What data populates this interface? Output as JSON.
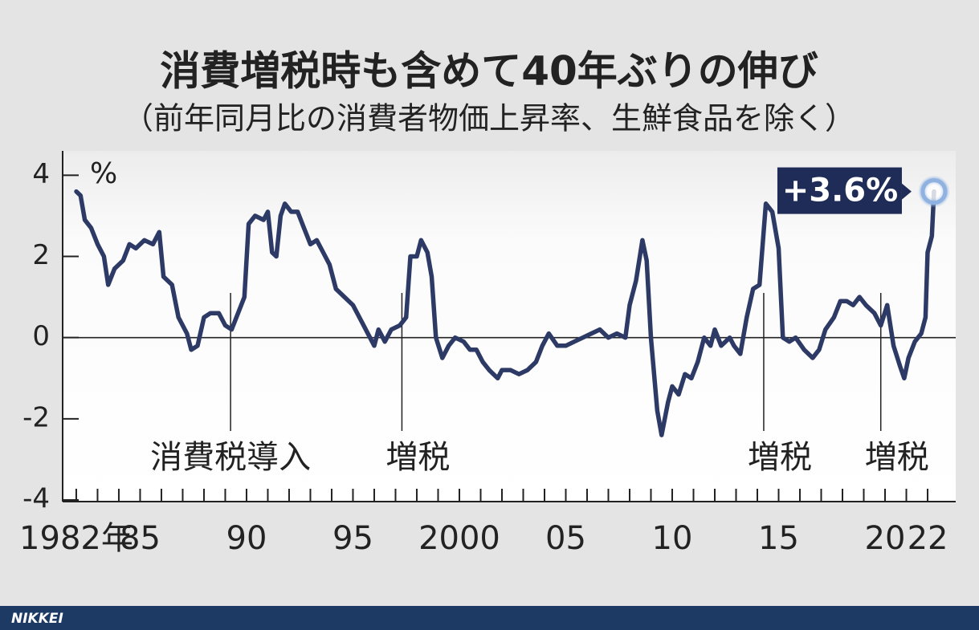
{
  "chart_data": {
    "type": "line",
    "title": "消費増税時も含めて40年ぶりの伸び",
    "subtitle": "（前年同月比の消費者物価上昇率、生鮮食品を除く）",
    "ylabel": "%",
    "callout": "+3.6%",
    "footer": "NIKKEI",
    "xlim": [
      1981.36,
      2023.32
    ],
    "ylim": [
      -4,
      4.6
    ],
    "yticks": [
      4,
      2,
      0,
      -2,
      -4
    ],
    "xticks": [
      {
        "value": 1982,
        "label": "1982年"
      },
      {
        "value": 1985,
        "label": "85"
      },
      {
        "value": 1990,
        "label": "90"
      },
      {
        "value": 1995,
        "label": "95"
      },
      2000,
      {
        "value": 2005,
        "label": "05"
      },
      {
        "value": 2010,
        "label": "10"
      },
      {
        "value": 2015,
        "label": "15"
      },
      {
        "value": 2020,
        "label": "20"
      },
      {
        "value": 2022,
        "label": "22"
      }
    ],
    "x_minor_ticks": [
      1983,
      1984,
      1986,
      1987,
      1988,
      1989,
      1991,
      1992,
      1993,
      1994,
      1996,
      1997,
      1998,
      1999,
      2001,
      2002,
      2003,
      2004,
      2006,
      2007,
      2008,
      2009,
      2011,
      2012,
      2013,
      2014,
      2016,
      2017,
      2018,
      2019,
      2021
    ],
    "annotations": [
      {
        "x": 1989.25,
        "text": "消費税導入"
      },
      {
        "x": 1997.3,
        "text": "増税"
      },
      {
        "x": 2014.3,
        "text": "増税"
      },
      {
        "x": 2019.8,
        "text": "増税"
      }
    ],
    "series": [
      {
        "color": "#2d3a66",
        "x": [
          1982.0,
          1982.2,
          1982.4,
          1982.7,
          1983.0,
          1983.3,
          1983.5,
          1983.8,
          1984.2,
          1984.5,
          1984.8,
          1985.2,
          1985.6,
          1985.9,
          1986.1,
          1986.5,
          1986.8,
          1987.2,
          1987.4,
          1987.7,
          1988.0,
          1988.3,
          1988.7,
          1989.0,
          1989.3,
          1989.6,
          1989.9,
          1990.1,
          1990.4,
          1990.8,
          1991.0,
          1991.2,
          1991.4,
          1991.6,
          1991.8,
          1992.1,
          1992.4,
          1992.7,
          1993.0,
          1993.3,
          1993.6,
          1993.9,
          1994.2,
          1994.6,
          1995.0,
          1995.4,
          1995.8,
          1996.0,
          1996.2,
          1996.5,
          1996.8,
          1997.2,
          1997.5,
          1997.7,
          1998.0,
          1998.2,
          1998.5,
          1998.7,
          1998.9,
          1999.2,
          1999.5,
          1999.8,
          2000.2,
          2000.5,
          2000.8,
          2001.1,
          2001.4,
          2001.8,
          2002.0,
          2002.4,
          2002.8,
          2003.2,
          2003.6,
          2003.9,
          2004.2,
          2004.6,
          2005.0,
          2005.4,
          2005.8,
          2006.2,
          2006.6,
          2007.0,
          2007.4,
          2007.8,
          2008.0,
          2008.3,
          2008.6,
          2008.8,
          2009.0,
          2009.3,
          2009.5,
          2009.8,
          2010.0,
          2010.3,
          2010.6,
          2010.9,
          2011.2,
          2011.5,
          2011.8,
          2012.0,
          2012.3,
          2012.7,
          2012.9,
          2013.2,
          2013.5,
          2013.8,
          2014.1,
          2014.4,
          2014.7,
          2015.0,
          2015.2,
          2015.5,
          2015.8,
          2016.2,
          2016.6,
          2016.9,
          2017.2,
          2017.6,
          2017.9,
          2018.2,
          2018.5,
          2018.8,
          2019.1,
          2019.5,
          2019.8,
          2020.1,
          2020.4,
          2020.7,
          2020.9,
          2021.1,
          2021.4,
          2021.7,
          2021.9,
          2022.0,
          2022.2,
          2022.3
        ],
        "values": [
          3.6,
          3.5,
          2.9,
          2.7,
          2.3,
          2.0,
          1.3,
          1.7,
          1.9,
          2.3,
          2.2,
          2.4,
          2.3,
          2.6,
          1.5,
          1.3,
          0.5,
          0.1,
          -0.3,
          -0.2,
          0.5,
          0.6,
          0.6,
          0.3,
          0.2,
          0.6,
          1.0,
          2.8,
          3.0,
          2.9,
          3.1,
          2.1,
          2.0,
          3.0,
          3.3,
          3.1,
          3.1,
          2.7,
          2.3,
          2.4,
          2.1,
          1.8,
          1.2,
          1.0,
          0.8,
          0.4,
          0.0,
          -0.2,
          0.2,
          -0.1,
          0.2,
          0.3,
          0.5,
          2.0,
          2.0,
          2.4,
          2.1,
          1.5,
          0.0,
          -0.5,
          -0.2,
          0.0,
          -0.1,
          -0.3,
          -0.3,
          -0.6,
          -0.8,
          -1.0,
          -0.8,
          -0.8,
          -0.9,
          -0.8,
          -0.6,
          -0.2,
          0.1,
          -0.2,
          -0.2,
          -0.1,
          0.0,
          0.1,
          0.2,
          0.0,
          0.1,
          0.0,
          0.8,
          1.4,
          2.4,
          1.9,
          0.0,
          -1.8,
          -2.4,
          -1.6,
          -1.2,
          -1.4,
          -0.9,
          -1.0,
          -0.6,
          0.0,
          -0.2,
          0.2,
          -0.2,
          0.0,
          -0.2,
          -0.4,
          0.5,
          1.2,
          1.3,
          3.3,
          3.1,
          2.2,
          0.0,
          -0.1,
          0.0,
          -0.3,
          -0.5,
          -0.3,
          0.2,
          0.5,
          0.9,
          0.9,
          0.8,
          1.0,
          0.8,
          0.6,
          0.3,
          0.8,
          -0.2,
          -0.7,
          -1.0,
          -0.5,
          -0.1,
          0.1,
          0.5,
          2.1,
          2.5,
          3.6
        ]
      }
    ]
  }
}
